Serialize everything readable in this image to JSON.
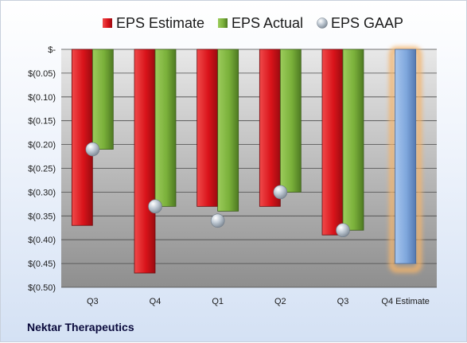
{
  "chart_data": {
    "type": "bar",
    "categories": [
      "Q3",
      "Q4",
      "Q1",
      "Q2",
      "Q3",
      "Q4 Estimate"
    ],
    "series": [
      {
        "name": "EPS Estimate",
        "color": "#d9131a",
        "values": [
          -0.37,
          -0.47,
          -0.33,
          -0.33,
          -0.39,
          null
        ]
      },
      {
        "name": "EPS Actual",
        "color": "#7ab03a",
        "values": [
          -0.21,
          -0.33,
          -0.34,
          -0.3,
          -0.38,
          null
        ]
      },
      {
        "name": "EPS GAAP",
        "color": "#b8c2cc",
        "marker": "sphere",
        "values": [
          -0.21,
          -0.33,
          -0.36,
          -0.3,
          -0.38,
          null
        ]
      }
    ],
    "forecast": {
      "category": "Q4 Estimate",
      "value": -0.45,
      "color": "#7ea6dc",
      "glow": "#f4b46a"
    },
    "ylim": [
      -0.5,
      0
    ],
    "yticks": [
      0,
      -0.05,
      -0.1,
      -0.15,
      -0.2,
      -0.25,
      -0.3,
      -0.35,
      -0.4,
      -0.45,
      -0.5
    ],
    "ytick_labels": [
      "$-",
      "$(0.05)",
      "$(0.10)",
      "$(0.15)",
      "$(0.20)",
      "$(0.25)",
      "$(0.30)",
      "$(0.35)",
      "$(0.40)",
      "$(0.45)",
      "$(0.50)"
    ],
    "legend_position": "top",
    "grid": true
  },
  "footer": {
    "company": "Nektar Therapeutics"
  }
}
